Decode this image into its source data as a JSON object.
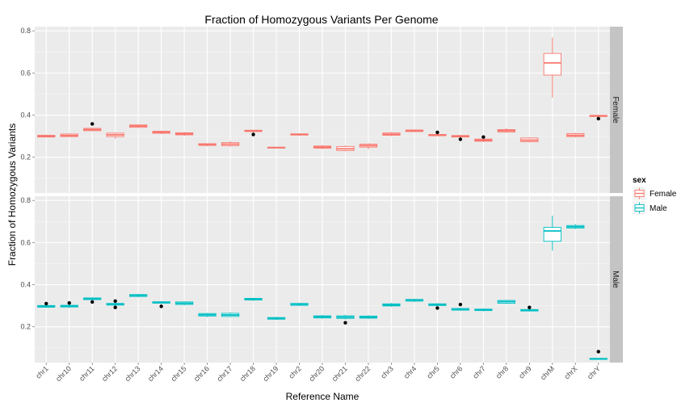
{
  "chart_data": {
    "type": "boxplot",
    "title": "Fraction of Homozygous Variants Per Genome",
    "xlabel": "Reference Name",
    "ylabel": "Fraction of Homozygous Variants",
    "ylim": [
      0.03,
      0.82
    ],
    "yticks": [
      "0.2",
      "0.4",
      "0.6",
      "0.8"
    ],
    "categories": [
      "chr1",
      "chr10",
      "chr11",
      "chr12",
      "chr13",
      "chr14",
      "chr15",
      "chr16",
      "chr17",
      "chr18",
      "chr19",
      "chr2",
      "chr20",
      "chr21",
      "chr22",
      "chr3",
      "chr4",
      "chr5",
      "chr6",
      "chr7",
      "chr8",
      "chr9",
      "chrM",
      "chrX",
      "chrY"
    ],
    "legend": {
      "title": "sex",
      "position": "right",
      "entries": [
        "Female",
        "Male"
      ]
    },
    "colors": {
      "Female": "#F8766D",
      "Male": "#00BFC4",
      "outlier": "#000000",
      "panel": "#EBEBEB",
      "strip": "#C4C4C4"
    },
    "panels": [
      {
        "name": "Female",
        "color": "#F8766D",
        "boxes": [
          {
            "q1": 0.296,
            "med": 0.3,
            "q3": 0.304,
            "lo": 0.294,
            "hi": 0.307,
            "out": []
          },
          {
            "q1": 0.298,
            "med": 0.303,
            "q3": 0.31,
            "lo": 0.296,
            "hi": 0.313,
            "out": []
          },
          {
            "q1": 0.326,
            "med": 0.331,
            "q3": 0.337,
            "lo": 0.323,
            "hi": 0.34,
            "out": [
              0.358
            ]
          },
          {
            "q1": 0.298,
            "med": 0.306,
            "q3": 0.314,
            "lo": 0.288,
            "hi": 0.318,
            "out": []
          },
          {
            "q1": 0.342,
            "med": 0.348,
            "q3": 0.353,
            "lo": 0.338,
            "hi": 0.356,
            "out": []
          },
          {
            "q1": 0.314,
            "med": 0.319,
            "q3": 0.323,
            "lo": 0.31,
            "hi": 0.326,
            "out": []
          },
          {
            "q1": 0.306,
            "med": 0.311,
            "q3": 0.316,
            "lo": 0.302,
            "hi": 0.32,
            "out": []
          },
          {
            "q1": 0.256,
            "med": 0.26,
            "q3": 0.264,
            "lo": 0.252,
            "hi": 0.266,
            "out": []
          },
          {
            "q1": 0.255,
            "med": 0.262,
            "q3": 0.269,
            "lo": 0.25,
            "hi": 0.276,
            "out": []
          },
          {
            "q1": 0.322,
            "med": 0.325,
            "q3": 0.328,
            "lo": 0.318,
            "hi": 0.33,
            "out": [
              0.308
            ]
          },
          {
            "q1": 0.244,
            "med": 0.246,
            "q3": 0.247,
            "lo": 0.243,
            "hi": 0.248,
            "out": []
          },
          {
            "q1": 0.305,
            "med": 0.308,
            "q3": 0.311,
            "lo": 0.303,
            "hi": 0.313,
            "out": []
          },
          {
            "q1": 0.243,
            "med": 0.248,
            "q3": 0.253,
            "lo": 0.238,
            "hi": 0.257,
            "out": []
          },
          {
            "q1": 0.232,
            "med": 0.24,
            "q3": 0.251,
            "lo": 0.228,
            "hi": 0.256,
            "out": []
          },
          {
            "q1": 0.248,
            "med": 0.255,
            "q3": 0.262,
            "lo": 0.238,
            "hi": 0.266,
            "out": []
          },
          {
            "q1": 0.304,
            "med": 0.309,
            "q3": 0.315,
            "lo": 0.3,
            "hi": 0.32,
            "out": []
          },
          {
            "q1": 0.322,
            "med": 0.326,
            "q3": 0.329,
            "lo": 0.319,
            "hi": 0.331,
            "out": []
          },
          {
            "q1": 0.302,
            "med": 0.305,
            "q3": 0.308,
            "lo": 0.299,
            "hi": 0.31,
            "out": [
              0.318
            ]
          },
          {
            "q1": 0.296,
            "med": 0.299,
            "q3": 0.303,
            "lo": 0.292,
            "hi": 0.306,
            "out": [
              0.285
            ]
          },
          {
            "q1": 0.276,
            "med": 0.281,
            "q3": 0.286,
            "lo": 0.272,
            "hi": 0.29,
            "out": [
              0.296
            ]
          },
          {
            "q1": 0.32,
            "med": 0.326,
            "q3": 0.331,
            "lo": 0.316,
            "hi": 0.338,
            "out": []
          },
          {
            "q1": 0.274,
            "med": 0.281,
            "q3": 0.291,
            "lo": 0.27,
            "hi": 0.295,
            "out": []
          },
          {
            "q1": 0.59,
            "med": 0.648,
            "q3": 0.693,
            "lo": 0.483,
            "hi": 0.768,
            "out": []
          },
          {
            "q1": 0.298,
            "med": 0.304,
            "q3": 0.312,
            "lo": 0.294,
            "hi": 0.316,
            "out": []
          },
          {
            "q1": 0.393,
            "med": 0.396,
            "q3": 0.399,
            "lo": 0.39,
            "hi": 0.401,
            "out": [
              0.383
            ]
          }
        ]
      },
      {
        "name": "Male",
        "color": "#00BFC4",
        "boxes": [
          {
            "q1": 0.293,
            "med": 0.297,
            "q3": 0.301,
            "lo": 0.29,
            "hi": 0.304,
            "out": [
              0.31
            ]
          },
          {
            "q1": 0.294,
            "med": 0.298,
            "q3": 0.302,
            "lo": 0.29,
            "hi": 0.306,
            "out": [
              0.313
            ]
          },
          {
            "q1": 0.329,
            "med": 0.333,
            "q3": 0.337,
            "lo": 0.325,
            "hi": 0.34,
            "out": [
              0.318
            ]
          },
          {
            "q1": 0.303,
            "med": 0.307,
            "q3": 0.311,
            "lo": 0.3,
            "hi": 0.314,
            "out": [
              0.322,
              0.292
            ]
          },
          {
            "q1": 0.344,
            "med": 0.349,
            "q3": 0.353,
            "lo": 0.34,
            "hi": 0.357,
            "out": []
          },
          {
            "q1": 0.312,
            "med": 0.316,
            "q3": 0.319,
            "lo": 0.309,
            "hi": 0.321,
            "out": [
              0.297
            ]
          },
          {
            "q1": 0.306,
            "med": 0.312,
            "q3": 0.318,
            "lo": 0.302,
            "hi": 0.321,
            "out": []
          },
          {
            "q1": 0.251,
            "med": 0.257,
            "q3": 0.263,
            "lo": 0.246,
            "hi": 0.266,
            "out": []
          },
          {
            "q1": 0.249,
            "med": 0.256,
            "q3": 0.264,
            "lo": 0.246,
            "hi": 0.268,
            "out": []
          },
          {
            "q1": 0.327,
            "med": 0.331,
            "q3": 0.335,
            "lo": 0.323,
            "hi": 0.338,
            "out": []
          },
          {
            "q1": 0.236,
            "med": 0.24,
            "q3": 0.244,
            "lo": 0.233,
            "hi": 0.247,
            "out": []
          },
          {
            "q1": 0.302,
            "med": 0.306,
            "q3": 0.311,
            "lo": 0.298,
            "hi": 0.314,
            "out": []
          },
          {
            "q1": 0.242,
            "med": 0.247,
            "q3": 0.252,
            "lo": 0.238,
            "hi": 0.256,
            "out": []
          },
          {
            "q1": 0.24,
            "med": 0.246,
            "q3": 0.252,
            "lo": 0.235,
            "hi": 0.257,
            "out": [
              0.219
            ]
          },
          {
            "q1": 0.241,
            "med": 0.246,
            "q3": 0.251,
            "lo": 0.237,
            "hi": 0.255,
            "out": []
          },
          {
            "q1": 0.299,
            "med": 0.304,
            "q3": 0.309,
            "lo": 0.295,
            "hi": 0.313,
            "out": []
          },
          {
            "q1": 0.322,
            "med": 0.326,
            "q3": 0.33,
            "lo": 0.318,
            "hi": 0.333,
            "out": []
          },
          {
            "q1": 0.301,
            "med": 0.305,
            "q3": 0.309,
            "lo": 0.298,
            "hi": 0.312,
            "out": [
              0.289
            ]
          },
          {
            "q1": 0.279,
            "med": 0.283,
            "q3": 0.287,
            "lo": 0.276,
            "hi": 0.29,
            "out": [
              0.306
            ]
          },
          {
            "q1": 0.277,
            "med": 0.281,
            "q3": 0.284,
            "lo": 0.274,
            "hi": 0.287,
            "out": []
          },
          {
            "q1": 0.312,
            "med": 0.319,
            "q3": 0.325,
            "lo": 0.308,
            "hi": 0.328,
            "out": []
          },
          {
            "q1": 0.275,
            "med": 0.279,
            "q3": 0.282,
            "lo": 0.272,
            "hi": 0.285,
            "out": [
              0.292
            ]
          },
          {
            "q1": 0.606,
            "med": 0.655,
            "q3": 0.672,
            "lo": 0.562,
            "hi": 0.728,
            "out": []
          },
          {
            "q1": 0.669,
            "med": 0.675,
            "q3": 0.681,
            "lo": 0.664,
            "hi": 0.688,
            "out": []
          },
          {
            "q1": 0.045,
            "med": 0.048,
            "q3": 0.05,
            "lo": 0.043,
            "hi": 0.052,
            "out": [
              0.082
            ]
          }
        ]
      }
    ]
  }
}
